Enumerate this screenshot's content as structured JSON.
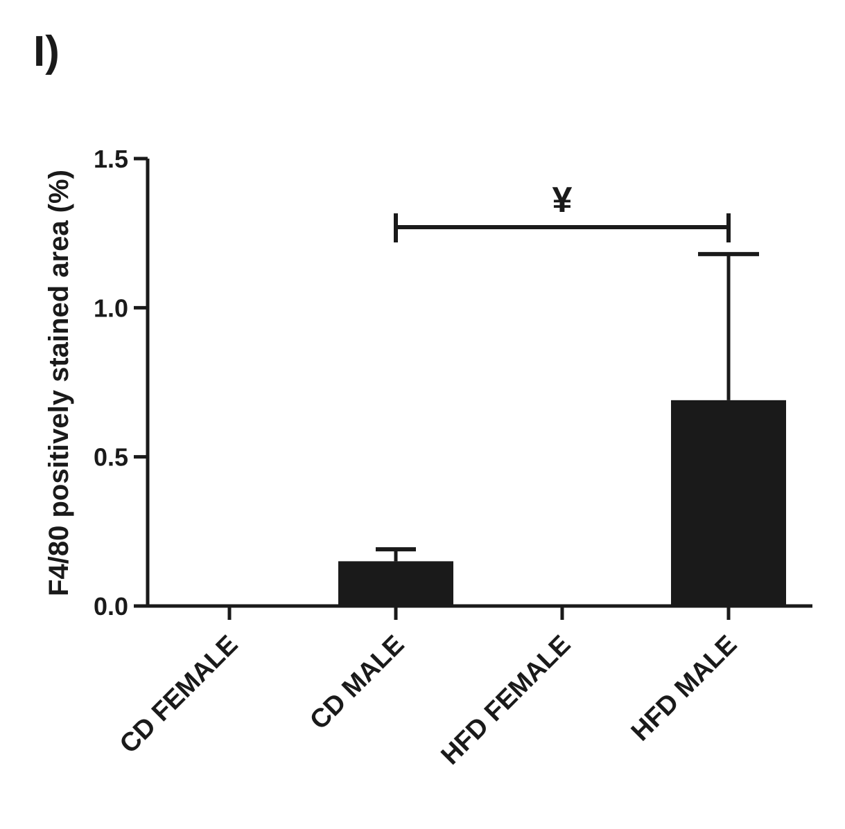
{
  "panel_label": "I)",
  "chart_data": {
    "type": "bar",
    "title": "",
    "xlabel": "",
    "ylabel": "F4/80 positively stained area (%)",
    "ylim": [
      0,
      1.5
    ],
    "yticks": [
      "0.0",
      "0.5",
      "1.0",
      "1.5"
    ],
    "categories": [
      "CD FEMALE",
      "CD MALE",
      "HFD FEMALE",
      "HFD MALE"
    ],
    "values": [
      0,
      0.15,
      0,
      0.69
    ],
    "error_upper": [
      0,
      0.19,
      0,
      1.18
    ],
    "bar_color": "#1a1a1a",
    "grid": false,
    "legend": "none",
    "annotations": [
      {
        "text": "¥",
        "from_category": "CD MALE",
        "to_category": "HFD MALE",
        "y": 1.27
      }
    ]
  }
}
